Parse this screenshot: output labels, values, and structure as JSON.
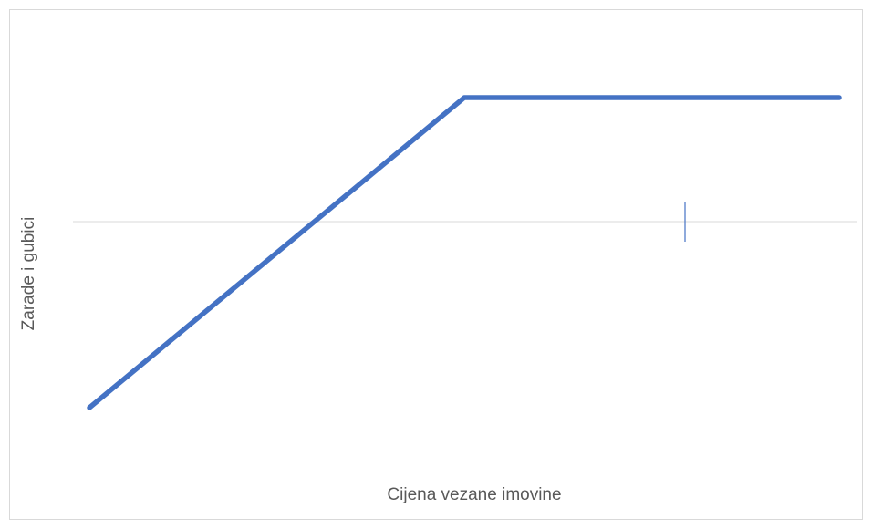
{
  "chart_data": {
    "type": "line",
    "xlabel": "Cijena vezane imovine",
    "ylabel": "Zarade i gubici",
    "categories": [
      null,
      null,
      null
    ],
    "series": [
      {
        "name": null,
        "color": "#4472c4",
        "values": [
          -60,
          40,
          40
        ]
      }
    ],
    "ylim": [
      -80,
      50
    ],
    "yticks": [
      0
    ],
    "tick_labels": false,
    "grid": true
  }
}
